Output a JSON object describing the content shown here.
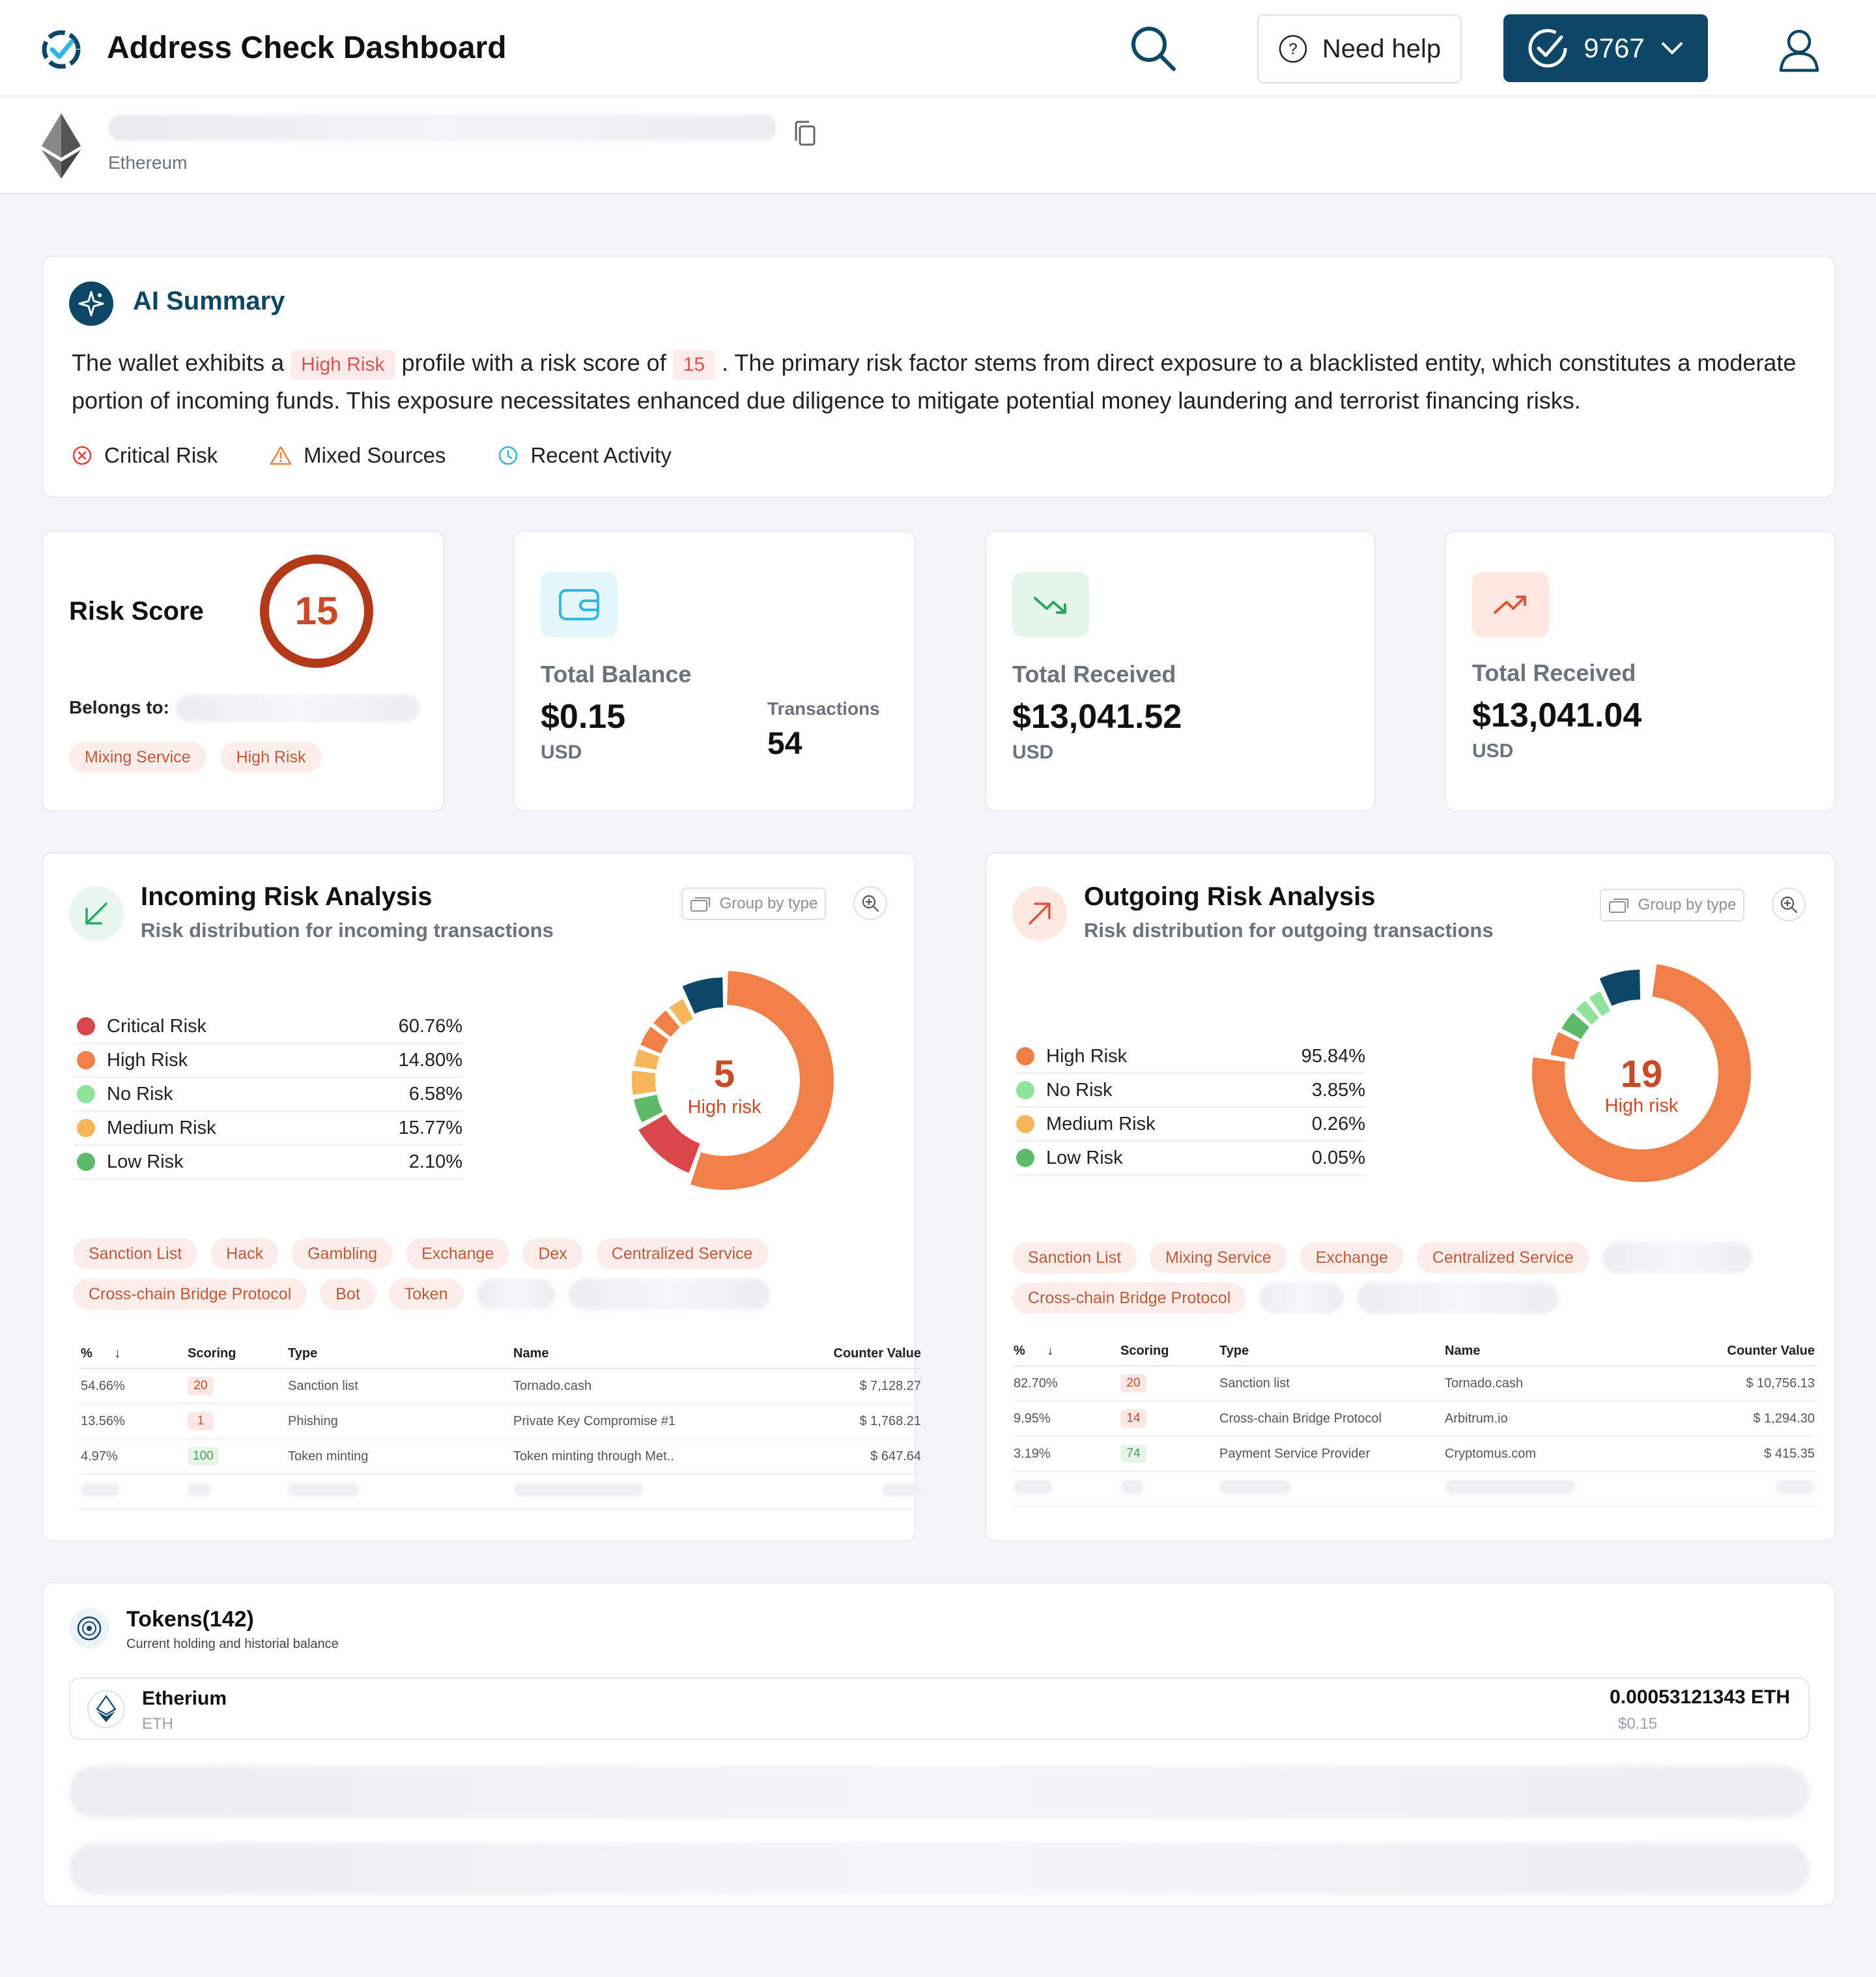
{
  "header": {
    "title": "Address Check Dashboard",
    "help_label": "Need help",
    "credits": "9767"
  },
  "address": {
    "network": "Ethereum"
  },
  "ai_summary": {
    "title": "AI Summary",
    "text_1": "The wallet exhibits a",
    "risk_label": "High Risk",
    "text_2": "profile with a risk score of",
    "score": "15",
    "text_3": ". The primary risk factor stems from direct exposure to a blacklisted entity, which constitutes a moderate portion of incoming funds. This exposure necessitates enhanced due diligence to mitigate potential money laundering and terrorist financing risks.",
    "tags": [
      "Critical Risk",
      "Mixed Sources",
      "Recent Activity"
    ]
  },
  "risk_score": {
    "label": "Risk Score",
    "value": "15",
    "belongs_label": "Belongs to:",
    "tags": [
      "Mixing Service",
      "High Risk"
    ]
  },
  "balance": {
    "label": "Total Balance",
    "value": "$0.15",
    "unit": "USD",
    "tx_label": "Transactions",
    "tx_value": "54"
  },
  "received": {
    "label": "Total Received",
    "value": "$13,041.52",
    "unit": "USD"
  },
  "sent": {
    "label": "Total Received",
    "value": "$13,041.04",
    "unit": "USD"
  },
  "incoming": {
    "title": "Incoming Risk Analysis",
    "subtitle": "Risk distribution for incoming transactions",
    "group_label": "Group by type",
    "legend": [
      {
        "name": "Critical Risk",
        "pct": "60.76%",
        "color": "#d9474b"
      },
      {
        "name": "High Risk",
        "pct": "14.80%",
        "color": "#f08048"
      },
      {
        "name": "No Risk",
        "pct": "6.58%",
        "color": "#8fe39a"
      },
      {
        "name": "Medium Risk",
        "pct": "15.77%",
        "color": "#f7b659"
      },
      {
        "name": "Low Risk",
        "pct": "2.10%",
        "color": "#5cba68"
      }
    ],
    "donut_value": "5",
    "donut_label": "High risk",
    "tags": [
      "Sanction List",
      "Hack",
      "Gambling",
      "Exchange",
      "Dex",
      "Centralized Service",
      "Cross-chain Bridge Protocol",
      "Bot",
      "Token"
    ],
    "table": {
      "headers": [
        "%",
        "Scoring",
        "Type",
        "Name",
        "Counter Value"
      ],
      "rows": [
        {
          "pct": "54.66%",
          "score": "20",
          "type": "Sanction list",
          "name": "Tornado.cash",
          "value": "$ 7,128.27",
          "tone": "red"
        },
        {
          "pct": "13.56%",
          "score": "1",
          "type": "Phishing",
          "name": "Private Key Compromise #1",
          "value": "$ 1,768.21",
          "tone": "red"
        },
        {
          "pct": "4.97%",
          "score": "100",
          "type": "Token minting",
          "name": "Token minting through Met..",
          "value": "$ 647.64",
          "tone": "green"
        }
      ]
    }
  },
  "outgoing": {
    "title": "Outgoing Risk Analysis",
    "subtitle": "Risk distribution for outgoing transactions",
    "group_label": "Group by type",
    "legend": [
      {
        "name": "High Risk",
        "pct": "95.84%",
        "color": "#f08048"
      },
      {
        "name": "No Risk",
        "pct": "3.85%",
        "color": "#8fe39a"
      },
      {
        "name": "Medium Risk",
        "pct": "0.26%",
        "color": "#f7b659"
      },
      {
        "name": "Low Risk",
        "pct": "0.05%",
        "color": "#5cba68"
      }
    ],
    "donut_value": "19",
    "donut_label": "High risk",
    "tags": [
      "Sanction List",
      "Mixing Service",
      "Exchange",
      "Centralized Service",
      "Cross-chain Bridge Protocol"
    ],
    "table": {
      "headers": [
        "%",
        "Scoring",
        "Type",
        "Name",
        "Counter Value"
      ],
      "rows": [
        {
          "pct": "82.70%",
          "score": "20",
          "type": "Sanction list",
          "name": "Tornado.cash",
          "value": "$ 10,756.13",
          "tone": "red"
        },
        {
          "pct": "9.95%",
          "score": "14",
          "type": "Cross-chain Bridge Protocol",
          "name": "Arbitrum.io",
          "value": "$ 1,294.30",
          "tone": "red"
        },
        {
          "pct": "3.19%",
          "score": "74",
          "type": "Payment Service Provider",
          "name": "Cryptomus.com",
          "value": "$ 415.35",
          "tone": "green"
        }
      ]
    }
  },
  "tokens": {
    "title": "Tokens(142)",
    "subtitle": "Current holding and historial balance",
    "item": {
      "name": "Etherium",
      "symbol": "ETH",
      "amount": "0.00053121343 ETH",
      "usd": "$0.15"
    }
  }
}
